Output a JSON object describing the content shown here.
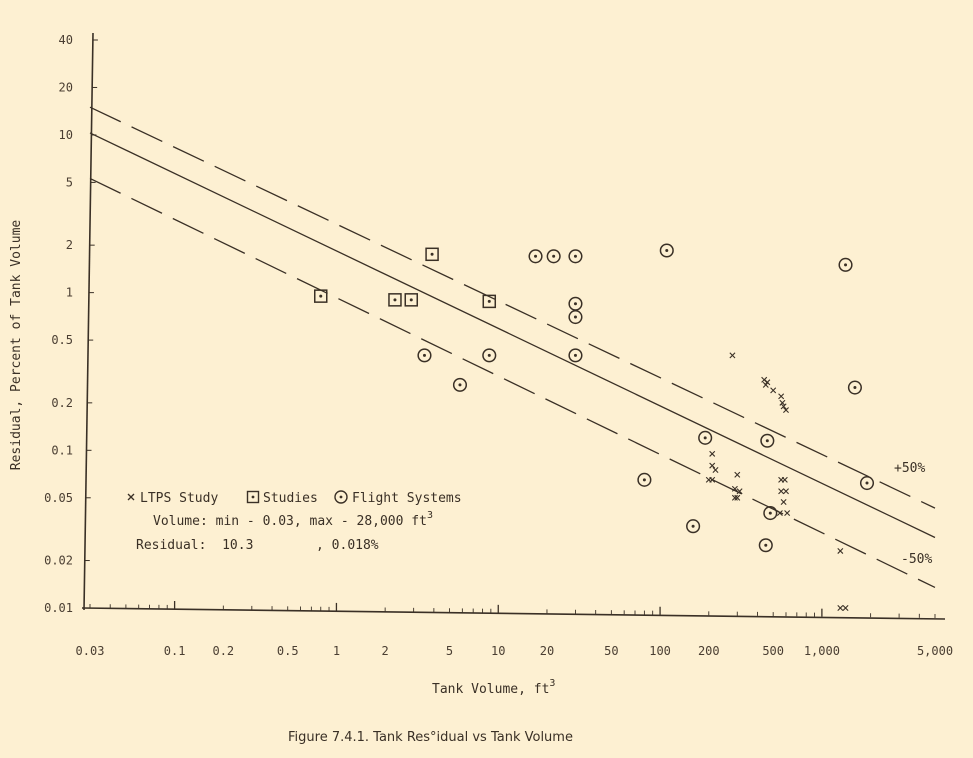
{
  "colors": {
    "background": "#fdf0d2",
    "ink": "#3a3026"
  },
  "chart_data": {
    "type": "scatter",
    "x_scale": "log",
    "y_scale": "log",
    "xlabel": "Tank Volume, ft",
    "xlabel_sup": "3",
    "ylabel": "Residual, Percent of Tank Volume",
    "xlim": [
      0.03,
      5000
    ],
    "ylim": [
      0.01,
      40
    ],
    "x_ticks": [
      {
        "value": 0.03,
        "label": "0.03"
      },
      {
        "value": 0.1,
        "label": "0.1"
      },
      {
        "value": 0.2,
        "label": "0.2"
      },
      {
        "value": 0.5,
        "label": "0.5"
      },
      {
        "value": 1,
        "label": "1"
      },
      {
        "value": 2,
        "label": "2"
      },
      {
        "value": 5,
        "label": "5"
      },
      {
        "value": 10,
        "label": "10"
      },
      {
        "value": 20,
        "label": "20"
      },
      {
        "value": 50,
        "label": "50"
      },
      {
        "value": 100,
        "label": "100"
      },
      {
        "value": 200,
        "label": "200"
      },
      {
        "value": 500,
        "label": "500"
      },
      {
        "value": 1000,
        "label": "1,000"
      },
      {
        "value": 5000,
        "label": "5,000"
      }
    ],
    "y_ticks": [
      {
        "value": 40,
        "label": "40"
      },
      {
        "value": 20,
        "label": "20"
      },
      {
        "value": 10,
        "label": "10"
      },
      {
        "value": 5,
        "label": "5"
      },
      {
        "value": 2,
        "label": "2"
      },
      {
        "value": 1,
        "label": "1"
      },
      {
        "value": 0.5,
        "label": "0.5"
      },
      {
        "value": 0.2,
        "label": "0.2"
      },
      {
        "value": 0.1,
        "label": "0.1"
      },
      {
        "value": 0.05,
        "label": "0.05"
      },
      {
        "value": 0.02,
        "label": "0.02"
      },
      {
        "value": 0.01,
        "label": "0.01"
      }
    ],
    "grid": false,
    "legend_position": "lower-left",
    "legend": {
      "ltps": "LTPS Study",
      "studies": "Studies",
      "flight": "Flight Systems",
      "volume_note": "Volume:  min - 0.03, max - 28,000 ft",
      "volume_sup": "3",
      "residual_note": "Residual:  10.3        , 0.018%"
    },
    "trend_lines": [
      {
        "name": "+50%",
        "style": "dashed",
        "points": [
          [
            0.03,
            15
          ],
          [
            5000,
            0.043
          ]
        ]
      },
      {
        "name": "",
        "style": "solid",
        "points": [
          [
            0.03,
            10.3
          ],
          [
            5000,
            0.028
          ]
        ]
      },
      {
        "name": "-50%",
        "style": "dashed",
        "points": [
          [
            0.03,
            5.3
          ],
          [
            5000,
            0.0135
          ]
        ]
      }
    ],
    "series": [
      {
        "name": "LTPS Study",
        "marker": "x",
        "points": [
          [
            280,
            0.4
          ],
          [
            210,
            0.095
          ],
          [
            210,
            0.08
          ],
          [
            220,
            0.075
          ],
          [
            200,
            0.065
          ],
          [
            210,
            0.065
          ],
          [
            300,
            0.07
          ],
          [
            290,
            0.057
          ],
          [
            310,
            0.055
          ],
          [
            290,
            0.05
          ],
          [
            300,
            0.05
          ],
          [
            440,
            0.28
          ],
          [
            460,
            0.27
          ],
          [
            450,
            0.26
          ],
          [
            500,
            0.24
          ],
          [
            560,
            0.22
          ],
          [
            570,
            0.2
          ],
          [
            580,
            0.19
          ],
          [
            600,
            0.18
          ],
          [
            560,
            0.065
          ],
          [
            590,
            0.065
          ],
          [
            560,
            0.055
          ],
          [
            600,
            0.055
          ],
          [
            580,
            0.047
          ],
          [
            550,
            0.04
          ],
          [
            610,
            0.04
          ],
          [
            1300,
            0.023
          ],
          [
            1300,
            0.01
          ],
          [
            1400,
            0.01
          ]
        ]
      },
      {
        "name": "Studies",
        "marker": "square-dot",
        "points": [
          [
            0.8,
            0.95
          ],
          [
            2.3,
            0.9
          ],
          [
            2.9,
            0.9
          ],
          [
            3.9,
            1.75
          ],
          [
            8.8,
            0.88
          ]
        ]
      },
      {
        "name": "Flight Systems",
        "marker": "circle-dot",
        "points": [
          [
            3.5,
            0.4
          ],
          [
            5.8,
            0.26
          ],
          [
            8.8,
            0.4
          ],
          [
            17,
            1.7
          ],
          [
            22,
            1.7
          ],
          [
            30,
            1.7
          ],
          [
            30,
            0.85
          ],
          [
            30,
            0.7
          ],
          [
            30,
            0.4
          ],
          [
            110,
            1.85
          ],
          [
            80,
            0.065
          ],
          [
            160,
            0.033
          ],
          [
            190,
            0.12
          ],
          [
            460,
            0.115
          ],
          [
            480,
            0.04
          ],
          [
            450,
            0.025
          ],
          [
            1400,
            1.5
          ],
          [
            1600,
            0.25
          ],
          [
            1900,
            0.062
          ]
        ]
      }
    ],
    "annotations": [
      {
        "text": "+50%",
        "at": [
          2300,
          0.083
        ]
      },
      {
        "text": "-50%",
        "at": [
          2500,
          0.0205
        ]
      }
    ],
    "caption": "Figure 7.4.1.  Tank Res°idual vs Tank Volume"
  }
}
